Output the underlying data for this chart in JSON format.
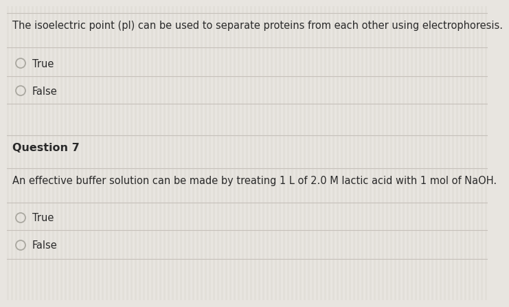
{
  "bg_color": "#e8e5e0",
  "stripe_color": "#dedad4",
  "line_color": "#c5c0ba",
  "text_color": "#2a2a2a",
  "q6_text": "The isoelectric point (pl) can be used to separate proteins from each other using electrophoresis.",
  "q6_options": [
    "True",
    "False"
  ],
  "q7_label": "Question 7",
  "q7_text": "An effective buffer solution can be made by treating 1 L of 2.0 M lactic acid with 1 mol of NaOH.",
  "q7_options": [
    "True",
    "False"
  ],
  "q7_label_fontsize": 11.5,
  "main_fontsize": 10.5,
  "option_fontsize": 10.5,
  "circle_color": "#aaa8a0"
}
